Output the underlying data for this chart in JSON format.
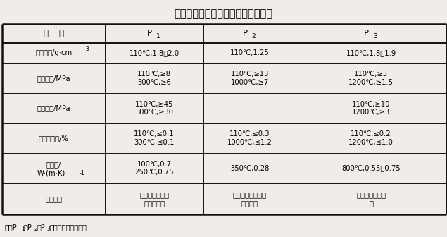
{
  "title": "烟囱和烟道用耐火喷涂料的技术性能",
  "note": "注：P1、P2、P3为耐火喷涂料牌号。",
  "col_headers": [
    "指    标",
    "P1",
    "P2",
    "P3"
  ],
  "rows": [
    {
      "label": "体积密度/g·cm-3",
      "p1": "110℃,1.8～2.0",
      "p2": "110℃,1.25",
      "p3": "110℃,1.8～1.9"
    },
    {
      "label": "抗折强度/MPa",
      "p1": "110℃,≥8\n300℃,≥6",
      "p2": "110℃,≥13\n1000℃,≥7",
      "p3": "110℃,≥3\n1200℃,≥1.5"
    },
    {
      "label": "耐压强度/MPa",
      "p1": "110℃,≥45\n300℃,≥30",
      "p2": "",
      "p3": "110℃,≥10\n1200℃,≥3"
    },
    {
      "label": "加热线变化/%",
      "p1": "110℃,≤0.1\n300℃,≤0.1",
      "p2": "110℃,≤0.3\n1000℃,≤1.2",
      "p3": "110℃,≤0.2\n1200℃,≤1.0"
    },
    {
      "label": "热导率/\nW·(m·K)-1",
      "p1": "100℃,0.7\n250℃,0.75",
      "p2": "350℃,0.28",
      "p3": "800℃,0.55～0.75"
    },
    {
      "label": "主要用途",
      "p1": "烧结厂和电厂的\n烟囱内衬等",
      "p2": "加热炉烟道烟囱隔\n热内衬等",
      "p3": "加热炉烟道内衬\n等"
    }
  ],
  "bg_color": "#f0ede8",
  "line_color": "#111111",
  "title_fontsize": 10.5,
  "cell_fontsize": 7.2,
  "header_fontsize": 8.5,
  "note_fontsize": 7.0
}
